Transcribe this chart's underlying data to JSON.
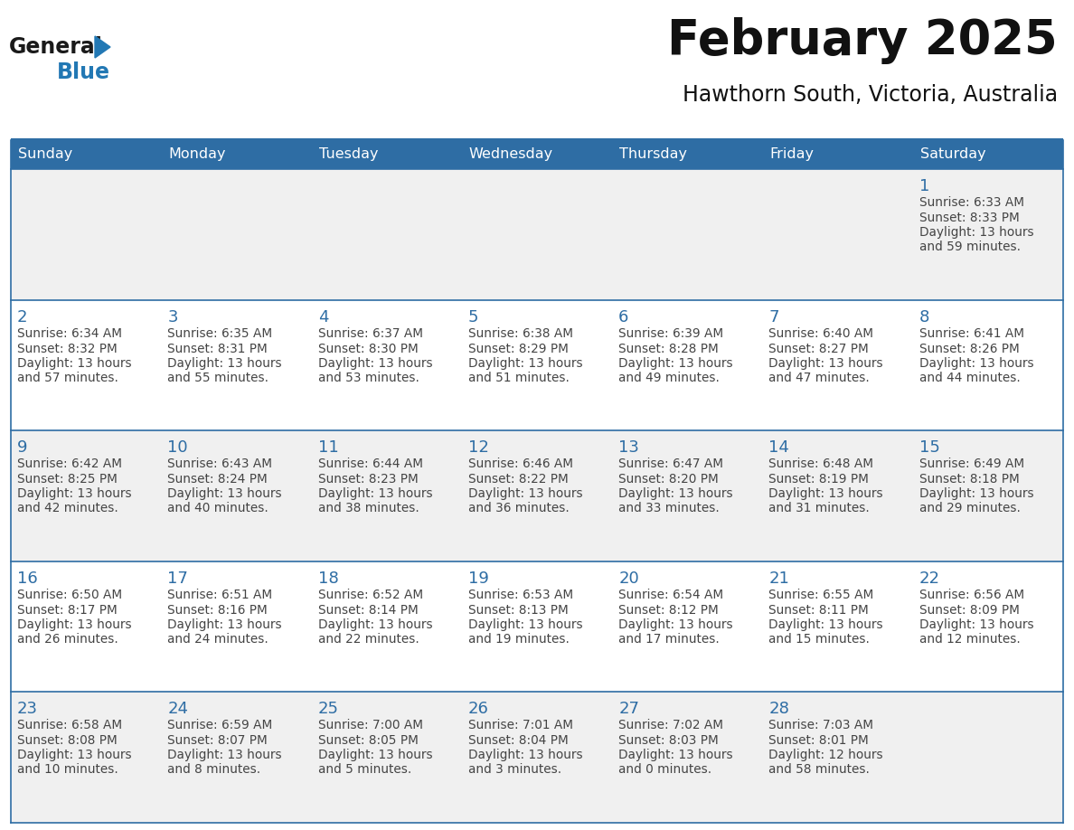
{
  "title": "February 2025",
  "subtitle": "Hawthorn South, Victoria, Australia",
  "header_bg": "#2E6DA4",
  "header_text_color": "#FFFFFF",
  "day_names": [
    "Sunday",
    "Monday",
    "Tuesday",
    "Wednesday",
    "Thursday",
    "Friday",
    "Saturday"
  ],
  "cell_bg_odd": "#F0F0F0",
  "cell_bg_even": "#FFFFFF",
  "border_color": "#2E6DA4",
  "text_color": "#444444",
  "number_color": "#2E6DA4",
  "logo_general_color": "#1a1a1a",
  "logo_blue_color": "#2278B4",
  "days": [
    {
      "date": 1,
      "col": 6,
      "row": 0,
      "sunrise": "6:33 AM",
      "sunset": "8:33 PM",
      "daylight_hours": 13,
      "daylight_minutes": 59
    },
    {
      "date": 2,
      "col": 0,
      "row": 1,
      "sunrise": "6:34 AM",
      "sunset": "8:32 PM",
      "daylight_hours": 13,
      "daylight_minutes": 57
    },
    {
      "date": 3,
      "col": 1,
      "row": 1,
      "sunrise": "6:35 AM",
      "sunset": "8:31 PM",
      "daylight_hours": 13,
      "daylight_minutes": 55
    },
    {
      "date": 4,
      "col": 2,
      "row": 1,
      "sunrise": "6:37 AM",
      "sunset": "8:30 PM",
      "daylight_hours": 13,
      "daylight_minutes": 53
    },
    {
      "date": 5,
      "col": 3,
      "row": 1,
      "sunrise": "6:38 AM",
      "sunset": "8:29 PM",
      "daylight_hours": 13,
      "daylight_minutes": 51
    },
    {
      "date": 6,
      "col": 4,
      "row": 1,
      "sunrise": "6:39 AM",
      "sunset": "8:28 PM",
      "daylight_hours": 13,
      "daylight_minutes": 49
    },
    {
      "date": 7,
      "col": 5,
      "row": 1,
      "sunrise": "6:40 AM",
      "sunset": "8:27 PM",
      "daylight_hours": 13,
      "daylight_minutes": 47
    },
    {
      "date": 8,
      "col": 6,
      "row": 1,
      "sunrise": "6:41 AM",
      "sunset": "8:26 PM",
      "daylight_hours": 13,
      "daylight_minutes": 44
    },
    {
      "date": 9,
      "col": 0,
      "row": 2,
      "sunrise": "6:42 AM",
      "sunset": "8:25 PM",
      "daylight_hours": 13,
      "daylight_minutes": 42
    },
    {
      "date": 10,
      "col": 1,
      "row": 2,
      "sunrise": "6:43 AM",
      "sunset": "8:24 PM",
      "daylight_hours": 13,
      "daylight_minutes": 40
    },
    {
      "date": 11,
      "col": 2,
      "row": 2,
      "sunrise": "6:44 AM",
      "sunset": "8:23 PM",
      "daylight_hours": 13,
      "daylight_minutes": 38
    },
    {
      "date": 12,
      "col": 3,
      "row": 2,
      "sunrise": "6:46 AM",
      "sunset": "8:22 PM",
      "daylight_hours": 13,
      "daylight_minutes": 36
    },
    {
      "date": 13,
      "col": 4,
      "row": 2,
      "sunrise": "6:47 AM",
      "sunset": "8:20 PM",
      "daylight_hours": 13,
      "daylight_minutes": 33
    },
    {
      "date": 14,
      "col": 5,
      "row": 2,
      "sunrise": "6:48 AM",
      "sunset": "8:19 PM",
      "daylight_hours": 13,
      "daylight_minutes": 31
    },
    {
      "date": 15,
      "col": 6,
      "row": 2,
      "sunrise": "6:49 AM",
      "sunset": "8:18 PM",
      "daylight_hours": 13,
      "daylight_minutes": 29
    },
    {
      "date": 16,
      "col": 0,
      "row": 3,
      "sunrise": "6:50 AM",
      "sunset": "8:17 PM",
      "daylight_hours": 13,
      "daylight_minutes": 26
    },
    {
      "date": 17,
      "col": 1,
      "row": 3,
      "sunrise": "6:51 AM",
      "sunset": "8:16 PM",
      "daylight_hours": 13,
      "daylight_minutes": 24
    },
    {
      "date": 18,
      "col": 2,
      "row": 3,
      "sunrise": "6:52 AM",
      "sunset": "8:14 PM",
      "daylight_hours": 13,
      "daylight_minutes": 22
    },
    {
      "date": 19,
      "col": 3,
      "row": 3,
      "sunrise": "6:53 AM",
      "sunset": "8:13 PM",
      "daylight_hours": 13,
      "daylight_minutes": 19
    },
    {
      "date": 20,
      "col": 4,
      "row": 3,
      "sunrise": "6:54 AM",
      "sunset": "8:12 PM",
      "daylight_hours": 13,
      "daylight_minutes": 17
    },
    {
      "date": 21,
      "col": 5,
      "row": 3,
      "sunrise": "6:55 AM",
      "sunset": "8:11 PM",
      "daylight_hours": 13,
      "daylight_minutes": 15
    },
    {
      "date": 22,
      "col": 6,
      "row": 3,
      "sunrise": "6:56 AM",
      "sunset": "8:09 PM",
      "daylight_hours": 13,
      "daylight_minutes": 12
    },
    {
      "date": 23,
      "col": 0,
      "row": 4,
      "sunrise": "6:58 AM",
      "sunset": "8:08 PM",
      "daylight_hours": 13,
      "daylight_minutes": 10
    },
    {
      "date": 24,
      "col": 1,
      "row": 4,
      "sunrise": "6:59 AM",
      "sunset": "8:07 PM",
      "daylight_hours": 13,
      "daylight_minutes": 8
    },
    {
      "date": 25,
      "col": 2,
      "row": 4,
      "sunrise": "7:00 AM",
      "sunset": "8:05 PM",
      "daylight_hours": 13,
      "daylight_minutes": 5
    },
    {
      "date": 26,
      "col": 3,
      "row": 4,
      "sunrise": "7:01 AM",
      "sunset": "8:04 PM",
      "daylight_hours": 13,
      "daylight_minutes": 3
    },
    {
      "date": 27,
      "col": 4,
      "row": 4,
      "sunrise": "7:02 AM",
      "sunset": "8:03 PM",
      "daylight_hours": 13,
      "daylight_minutes": 0
    },
    {
      "date": 28,
      "col": 5,
      "row": 4,
      "sunrise": "7:03 AM",
      "sunset": "8:01 PM",
      "daylight_hours": 12,
      "daylight_minutes": 58
    }
  ]
}
